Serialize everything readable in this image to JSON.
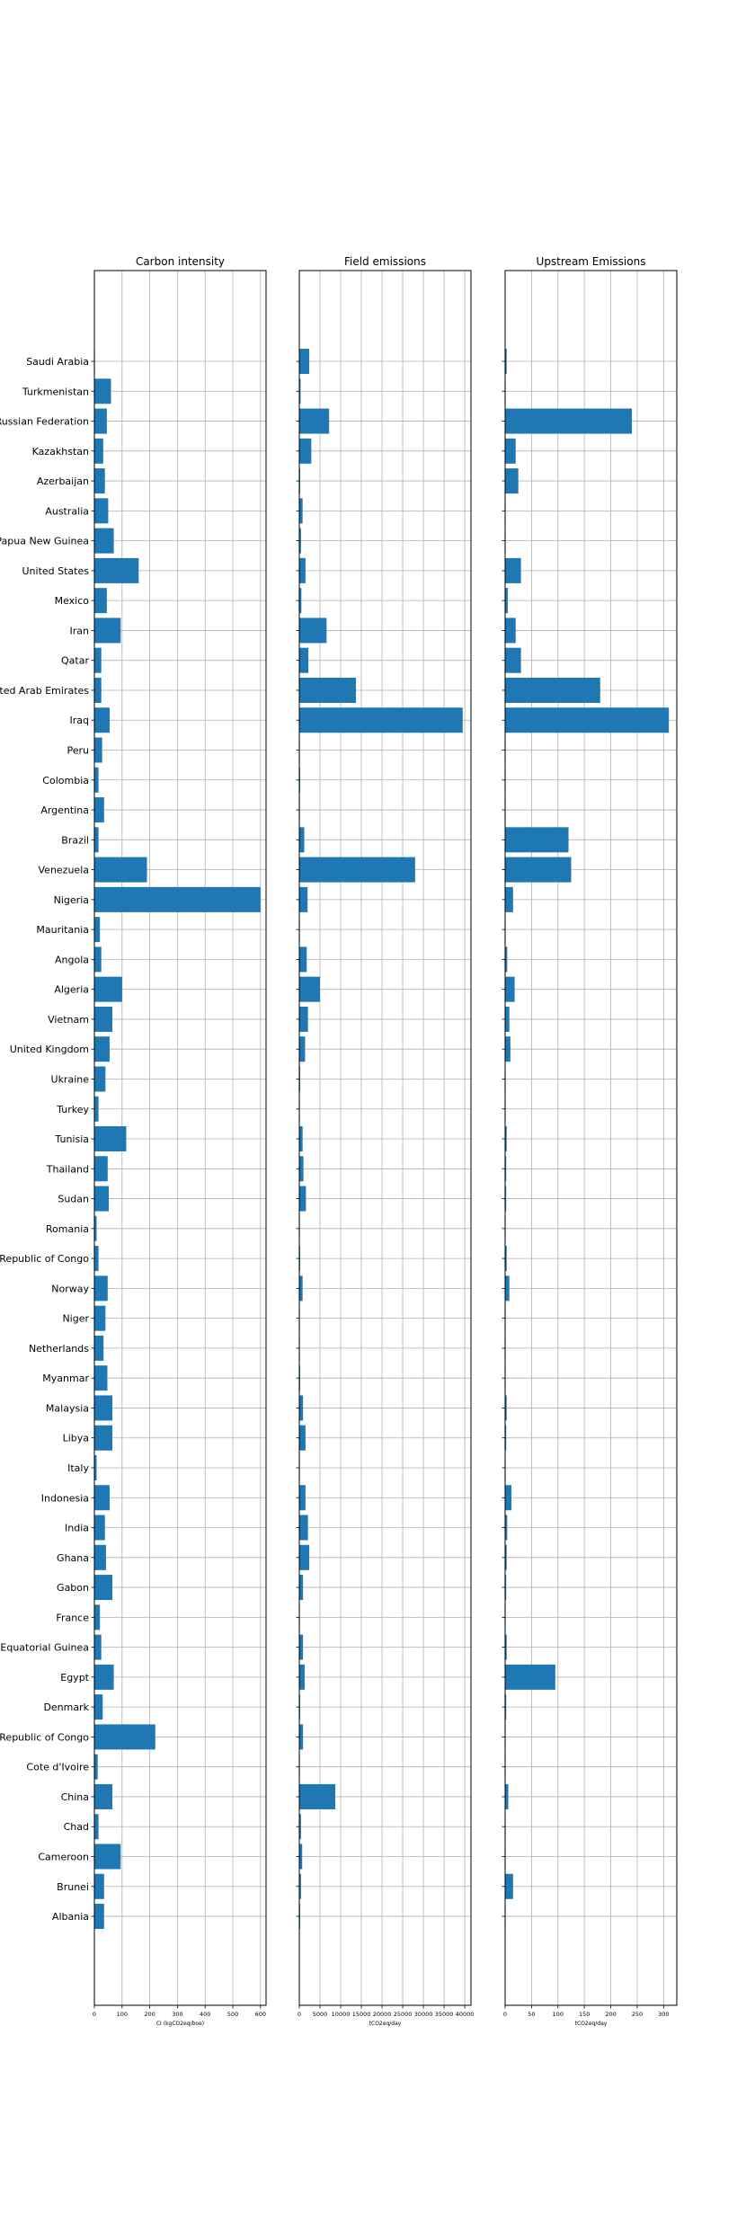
{
  "chart_data": [
    {
      "type": "bar",
      "orientation": "horizontal",
      "title": "Carbon intensity",
      "xlabel": "CI (kgCO2eq/boe)",
      "xlim": [
        0,
        620
      ],
      "xticks": [
        0,
        100,
        200,
        300,
        400,
        500,
        600
      ],
      "grid": true,
      "color": "#1f77b4",
      "categories": [
        "Saudi Arabia",
        "Turkmenistan",
        "Russian Federation",
        "Kazakhstan",
        "Azerbaijan",
        "Australia",
        "Papua New Guinea",
        "United States",
        "Mexico",
        "Iran",
        "Qatar",
        "United Arab Emirates",
        "Iraq",
        "Peru",
        "Colombia",
        "Argentina",
        "Brazil",
        "Venezuela",
        "Nigeria",
        "Mauritania",
        "Angola",
        "Algeria",
        "Vietnam",
        "United Kingdom",
        "Ukraine",
        "Turkey",
        "Tunisia",
        "Thailand",
        "Sudan",
        "Romania",
        "Republic of Congo",
        "Norway",
        "Niger",
        "Netherlands",
        "Myanmar",
        "Malaysia",
        "Libya",
        "Italy",
        "Indonesia",
        "India",
        "Ghana",
        "Gabon",
        "France",
        "Equatorial Guinea",
        "Egypt",
        "Denmark",
        "Democratic Republic of Congo",
        "Cote d'Ivoire",
        "China",
        "Chad",
        "Cameroon",
        "Brunei",
        "Albania"
      ],
      "values": [
        0,
        60,
        45,
        32,
        38,
        50,
        70,
        160,
        45,
        95,
        25,
        25,
        55,
        28,
        15,
        35,
        15,
        190,
        600,
        20,
        25,
        100,
        65,
        55,
        40,
        15,
        115,
        48,
        52,
        8,
        15,
        48,
        40,
        33,
        47,
        65,
        65,
        8,
        55,
        38,
        42,
        65,
        20,
        25,
        70,
        30,
        220,
        12,
        65,
        15,
        95,
        35,
        35
      ]
    },
    {
      "type": "bar",
      "orientation": "horizontal",
      "title": "Field emissions",
      "xlabel": "tCO2eq/day",
      "xlim": [
        0,
        41500
      ],
      "xticks": [
        0,
        5000,
        10000,
        15000,
        20000,
        25000,
        30000,
        35000,
        40000
      ],
      "grid": true,
      "color": "#1f77b4",
      "categories": [
        "Saudi Arabia",
        "Turkmenistan",
        "Russian Federation",
        "Kazakhstan",
        "Azerbaijan",
        "Australia",
        "Papua New Guinea",
        "United States",
        "Mexico",
        "Iran",
        "Qatar",
        "United Arab Emirates",
        "Iraq",
        "Peru",
        "Colombia",
        "Argentina",
        "Brazil",
        "Venezuela",
        "Nigeria",
        "Mauritania",
        "Angola",
        "Algeria",
        "Vietnam",
        "United Kingdom",
        "Ukraine",
        "Turkey",
        "Tunisia",
        "Thailand",
        "Sudan",
        "Romania",
        "Republic of Congo",
        "Norway",
        "Niger",
        "Netherlands",
        "Myanmar",
        "Malaysia",
        "Libya",
        "Italy",
        "Indonesia",
        "India",
        "Ghana",
        "Gabon",
        "France",
        "Equatorial Guinea",
        "Egypt",
        "Denmark",
        "Democratic Republic of Congo",
        "Cote d'Ivoire",
        "China",
        "Chad",
        "Cameroon",
        "Brunei",
        "Albania"
      ],
      "values": [
        2400,
        300,
        7200,
        2900,
        200,
        800,
        400,
        1500,
        500,
        6600,
        2200,
        13700,
        39500,
        100,
        200,
        100,
        1200,
        28000,
        2000,
        50,
        1800,
        5000,
        2100,
        1400,
        200,
        100,
        800,
        1000,
        1600,
        50,
        200,
        800,
        100,
        100,
        200,
        900,
        1500,
        50,
        1500,
        2100,
        2400,
        900,
        100,
        900,
        1300,
        200,
        900,
        50,
        8700,
        400,
        700,
        400,
        200
      ]
    },
    {
      "type": "bar",
      "orientation": "horizontal",
      "title": "Upstream Emissions",
      "xlabel": "tCO2eq/day",
      "xlim": [
        0,
        325
      ],
      "xticks": [
        0,
        50,
        100,
        150,
        200,
        250,
        300
      ],
      "grid": true,
      "color": "#1f77b4",
      "categories": [
        "Saudi Arabia",
        "Turkmenistan",
        "Russian Federation",
        "Kazakhstan",
        "Azerbaijan",
        "Australia",
        "Papua New Guinea",
        "United States",
        "Mexico",
        "Iran",
        "Qatar",
        "United Arab Emirates",
        "Iraq",
        "Peru",
        "Colombia",
        "Argentina",
        "Brazil",
        "Venezuela",
        "Nigeria",
        "Mauritania",
        "Angola",
        "Algeria",
        "Vietnam",
        "United Kingdom",
        "Ukraine",
        "Turkey",
        "Tunisia",
        "Thailand",
        "Sudan",
        "Romania",
        "Republic of Congo",
        "Norway",
        "Niger",
        "Netherlands",
        "Myanmar",
        "Malaysia",
        "Libya",
        "Italy",
        "Indonesia",
        "India",
        "Ghana",
        "Gabon",
        "France",
        "Equatorial Guinea",
        "Egypt",
        "Denmark",
        "Democratic Republic of Congo",
        "Cote d'Ivoire",
        "China",
        "Chad",
        "Cameroon",
        "Brunei",
        "Albania"
      ],
      "values": [
        3,
        0,
        240,
        20,
        25,
        0,
        1,
        30,
        5,
        20,
        30,
        180,
        310,
        0,
        0,
        0,
        120,
        125,
        15,
        0,
        4,
        18,
        8,
        10,
        1,
        0,
        3,
        2,
        2,
        0,
        3,
        8,
        0,
        1,
        1,
        3,
        2,
        0,
        12,
        4,
        3,
        2,
        0,
        3,
        95,
        2,
        1,
        0,
        6,
        1,
        1,
        15,
        1
      ]
    }
  ]
}
